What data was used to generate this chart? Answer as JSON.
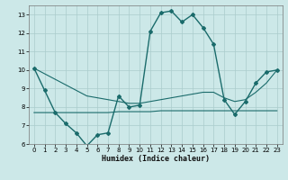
{
  "xlabel": "Humidex (Indice chaleur)",
  "background_color": "#cce8e8",
  "grid_color": "#aacccc",
  "line_color": "#1a6b6b",
  "xlim": [
    -0.5,
    23.5
  ],
  "ylim": [
    6,
    13.5
  ],
  "xticks": [
    0,
    1,
    2,
    3,
    4,
    5,
    6,
    7,
    8,
    9,
    10,
    11,
    12,
    13,
    14,
    15,
    16,
    17,
    18,
    19,
    20,
    21,
    22,
    23
  ],
  "yticks": [
    6,
    7,
    8,
    9,
    10,
    11,
    12,
    13
  ],
  "line1_x": [
    0,
    1,
    2,
    3,
    4,
    5,
    6,
    7,
    8,
    9,
    10,
    11,
    12,
    13,
    14,
    15,
    16,
    17,
    18,
    19,
    20,
    21,
    22,
    23
  ],
  "line1_y": [
    10.1,
    8.9,
    7.7,
    7.1,
    6.6,
    5.9,
    6.5,
    6.6,
    8.6,
    8.0,
    8.1,
    12.1,
    13.1,
    13.2,
    12.6,
    13.0,
    12.3,
    11.4,
    8.4,
    7.6,
    8.3,
    9.3,
    9.9,
    10.0
  ],
  "line2_x": [
    0,
    1,
    2,
    3,
    4,
    5,
    6,
    7,
    8,
    9,
    10,
    11,
    12,
    13,
    14,
    15,
    16,
    17,
    18,
    19,
    20,
    21,
    22,
    23
  ],
  "line2_y": [
    7.7,
    7.7,
    7.7,
    7.7,
    7.7,
    7.7,
    7.7,
    7.7,
    7.75,
    7.75,
    7.75,
    7.75,
    7.8,
    7.8,
    7.8,
    7.8,
    7.8,
    7.8,
    7.8,
    7.8,
    7.8,
    7.8,
    7.8,
    7.8
  ],
  "line3_x": [
    0,
    1,
    2,
    3,
    4,
    5,
    6,
    7,
    8,
    9,
    10,
    11,
    12,
    13,
    14,
    15,
    16,
    17,
    18,
    19,
    20,
    21,
    22,
    23
  ],
  "line3_y": [
    10.1,
    9.8,
    9.5,
    9.2,
    8.9,
    8.6,
    8.5,
    8.4,
    8.3,
    8.2,
    8.2,
    8.3,
    8.4,
    8.5,
    8.6,
    8.7,
    8.8,
    8.8,
    8.5,
    8.3,
    8.4,
    8.8,
    9.3,
    10.0
  ]
}
